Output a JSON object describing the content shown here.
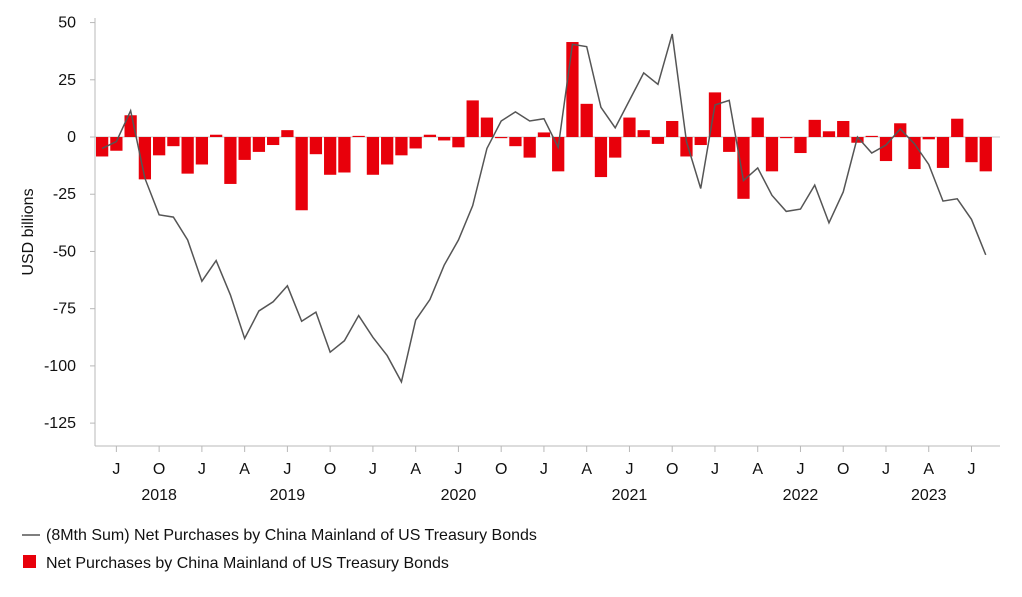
{
  "chart_data": {
    "type": "bar+line",
    "title": "",
    "ylabel": "USD billions",
    "xlabel": "",
    "ylim": [
      -135,
      52
    ],
    "yticks": [
      50,
      25,
      0,
      -25,
      -50,
      -75,
      -100,
      -125
    ],
    "x_start": "2018-06",
    "x_end": "2023-08",
    "quarter_ticks": [
      {
        "label": "J",
        "month": "2018-07"
      },
      {
        "label": "O",
        "month": "2018-10"
      },
      {
        "label": "J",
        "month": "2019-01"
      },
      {
        "label": "A",
        "month": "2019-04"
      },
      {
        "label": "J",
        "month": "2019-07"
      },
      {
        "label": "O",
        "month": "2019-10"
      },
      {
        "label": "J",
        "month": "2020-01"
      },
      {
        "label": "A",
        "month": "2020-04"
      },
      {
        "label": "J",
        "month": "2020-07"
      },
      {
        "label": "O",
        "month": "2020-10"
      },
      {
        "label": "J",
        "month": "2021-01"
      },
      {
        "label": "A",
        "month": "2021-04"
      },
      {
        "label": "J",
        "month": "2021-07"
      },
      {
        "label": "O",
        "month": "2021-10"
      },
      {
        "label": "J",
        "month": "2022-01"
      },
      {
        "label": "A",
        "month": "2022-04"
      },
      {
        "label": "J",
        "month": "2022-07"
      },
      {
        "label": "O",
        "month": "2022-10"
      },
      {
        "label": "J",
        "month": "2023-01"
      },
      {
        "label": "A",
        "month": "2023-04"
      },
      {
        "label": "J",
        "month": "2023-07"
      }
    ],
    "year_labels": [
      {
        "label": "2018",
        "month": "2018-10"
      },
      {
        "label": "2019",
        "month": "2019-07"
      },
      {
        "label": "2020",
        "month": "2020-07"
      },
      {
        "label": "2021",
        "month": "2021-07"
      },
      {
        "label": "2022",
        "month": "2022-07"
      },
      {
        "label": "2023",
        "month": "2023-04"
      }
    ],
    "series": [
      {
        "name": "Net Purchases by China Mainland of US Treasury Bonds",
        "type": "bar",
        "color": "#e8000b",
        "values": [
          -8.5,
          -6,
          9.5,
          -18.5,
          -8,
          -4,
          -16,
          -12,
          1,
          -20.5,
          -10,
          -6.5,
          -3.5,
          3,
          -32,
          -7.5,
          -16.5,
          -15.5,
          0.5,
          -16.5,
          -12,
          -8,
          -5,
          1,
          -1.5,
          -4.5,
          16,
          8.5,
          -0.5,
          -4,
          -9,
          2,
          -15,
          41.5,
          14.5,
          -17.5,
          -9,
          8.5,
          3,
          -3,
          7,
          -8.5,
          -3.5,
          19.5,
          -6.5,
          -27,
          8.5,
          -15,
          -0.5,
          -7,
          7.5,
          2.5,
          7,
          -2.5,
          0.5,
          -10.5,
          6,
          -14,
          -1,
          -13.5,
          8,
          -11,
          -15
        ]
      },
      {
        "name": "(8Mth Sum) Net Purchases by China Mainland of US Treasury Bonds",
        "type": "line",
        "color": "#555555",
        "values": [
          -5,
          -2,
          11.5,
          -18,
          -34,
          -35,
          -45,
          -63,
          -54,
          -69,
          -88,
          -76,
          -72,
          -65,
          -80.5,
          -76.5,
          -94,
          -89,
          -78,
          -87.5,
          -95.5,
          -107,
          -80,
          -71,
          -56,
          -45,
          -30,
          -5,
          7,
          11,
          7,
          8,
          -4.5,
          40.5,
          39.5,
          13,
          4,
          16,
          28,
          23,
          45,
          -2,
          -22.5,
          14,
          16,
          -19,
          -13.5,
          -25.5,
          -32.5,
          -31.5,
          -21,
          -37.5,
          -24,
          0,
          -7,
          -3.5,
          3.5,
          -3,
          -12,
          -28,
          -27,
          -36,
          -51.5
        ]
      }
    ],
    "legend": {
      "placement": "bottom-left",
      "line_label": "(8Mth Sum) Net Purchases by China Mainland of US Treasury Bonds",
      "bar_label": "Net Purchases by China Mainland of US Treasury Bonds"
    }
  }
}
